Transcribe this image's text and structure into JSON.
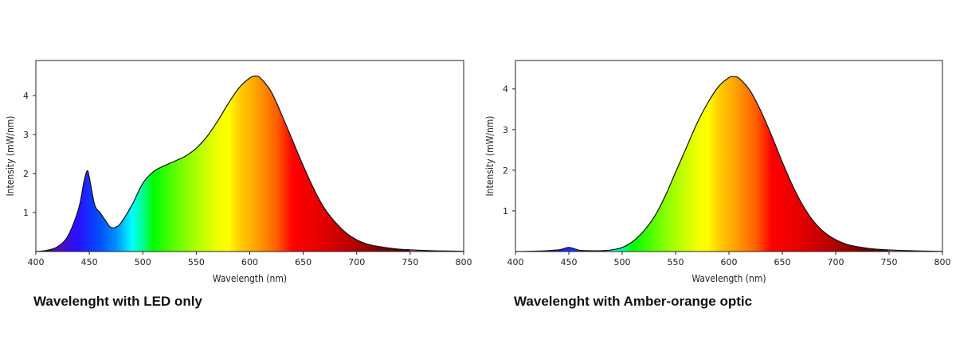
{
  "captions": {
    "left": "Wavelenght with LED only",
    "right": "Wavelenght with Amber-orange optic"
  },
  "chart_data": [
    {
      "type": "area",
      "title": "Wavelenght with LED only",
      "xlabel": "Wavelength (nm)",
      "ylabel": "Intensity (mW/nm)",
      "xlim": [
        400,
        800
      ],
      "ylim": [
        0,
        4.9
      ],
      "xticks": [
        400,
        450,
        500,
        550,
        600,
        650,
        700,
        750,
        800
      ],
      "yticks": [
        1,
        2,
        3,
        4
      ],
      "grid": false,
      "fill": "visible-spectrum gradient",
      "x": [
        400,
        410,
        420,
        430,
        440,
        445,
        448,
        450,
        455,
        460,
        465,
        470,
        475,
        480,
        490,
        500,
        510,
        520,
        530,
        540,
        550,
        560,
        570,
        580,
        590,
        600,
        605,
        610,
        620,
        630,
        640,
        650,
        660,
        670,
        680,
        690,
        700,
        710,
        720,
        730,
        740,
        750,
        760,
        770,
        780,
        790,
        800
      ],
      "values": [
        0.0,
        0.03,
        0.12,
        0.4,
        1.1,
        1.8,
        2.07,
        1.9,
        1.2,
        1.0,
        0.8,
        0.62,
        0.63,
        0.75,
        1.2,
        1.75,
        2.05,
        2.2,
        2.32,
        2.45,
        2.65,
        2.95,
        3.35,
        3.8,
        4.2,
        4.45,
        4.5,
        4.45,
        4.1,
        3.5,
        2.85,
        2.2,
        1.6,
        1.1,
        0.75,
        0.48,
        0.3,
        0.19,
        0.13,
        0.09,
        0.06,
        0.045,
        0.03,
        0.02,
        0.015,
        0.01,
        0.005
      ]
    },
    {
      "type": "area",
      "title": "Wavelenght with Amber-orange optic",
      "xlabel": "Wavelength (nm)",
      "ylabel": "Intensity (mW/nm)",
      "xlim": [
        400,
        800
      ],
      "ylim": [
        0,
        4.7
      ],
      "xticks": [
        400,
        450,
        500,
        550,
        600,
        650,
        700,
        750,
        800
      ],
      "yticks": [
        1,
        2,
        3,
        4
      ],
      "grid": false,
      "fill": "visible-spectrum gradient",
      "x": [
        400,
        420,
        440,
        445,
        450,
        455,
        460,
        470,
        480,
        490,
        500,
        510,
        520,
        530,
        540,
        550,
        560,
        570,
        580,
        590,
        600,
        605,
        610,
        620,
        630,
        640,
        650,
        660,
        670,
        680,
        690,
        700,
        710,
        720,
        730,
        740,
        750,
        760,
        770,
        780,
        790,
        800
      ],
      "values": [
        0.0,
        0.01,
        0.04,
        0.07,
        0.1,
        0.07,
        0.03,
        0.02,
        0.02,
        0.04,
        0.1,
        0.25,
        0.5,
        0.85,
        1.35,
        1.95,
        2.55,
        3.15,
        3.65,
        4.05,
        4.28,
        4.3,
        4.25,
        3.95,
        3.45,
        2.85,
        2.2,
        1.6,
        1.1,
        0.72,
        0.46,
        0.29,
        0.18,
        0.12,
        0.08,
        0.055,
        0.04,
        0.028,
        0.02,
        0.013,
        0.008,
        0.004
      ]
    }
  ]
}
